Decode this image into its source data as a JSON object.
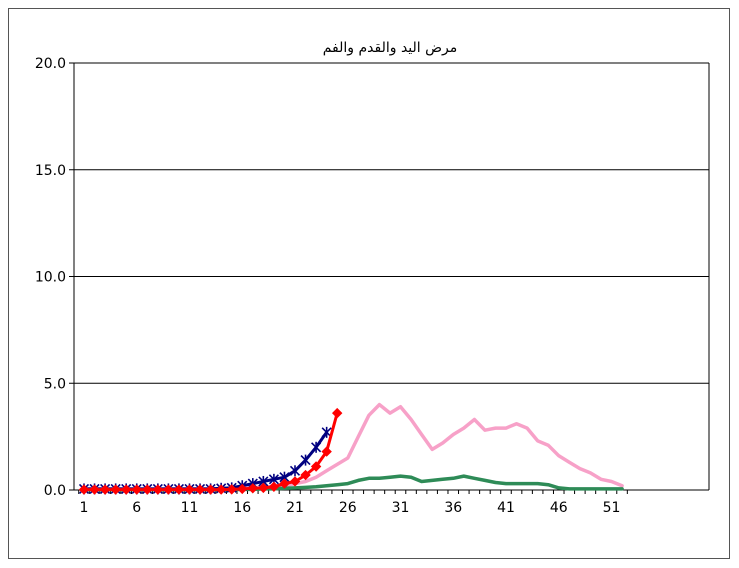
{
  "chart_data": {
    "type": "line",
    "title": "مرض اليد والقدم والفم",
    "xlabel": "",
    "ylabel": "",
    "ylim": [
      0,
      20
    ],
    "y_ticks": [
      "0.0",
      "5.0",
      "10.0",
      "15.0",
      "20.0"
    ],
    "x_ticks": [
      "1",
      "6",
      "11",
      "16",
      "21",
      "26",
      "31",
      "36",
      "41",
      "46",
      "51"
    ],
    "xlim": [
      1,
      53
    ],
    "grid": "horizontal",
    "legend": "none",
    "series": [
      {
        "color": "#f7a1c8",
        "marker": "none",
        "x": [
          1,
          2,
          3,
          4,
          5,
          6,
          7,
          8,
          9,
          10,
          11,
          12,
          13,
          14,
          15,
          16,
          17,
          18,
          19,
          20,
          21,
          22,
          23,
          24,
          25,
          26,
          27,
          28,
          29,
          30,
          31,
          32,
          33,
          34,
          35,
          36,
          37,
          38,
          39,
          40,
          41,
          42,
          43,
          44,
          45,
          46,
          47,
          48,
          49,
          50,
          51,
          52
        ],
        "values": [
          0.05,
          0.05,
          0.05,
          0.05,
          0.05,
          0.05,
          0.05,
          0.05,
          0.05,
          0.05,
          0.05,
          0.05,
          0.05,
          0.05,
          0.05,
          0.1,
          0.1,
          0.15,
          0.15,
          0.2,
          0.3,
          0.4,
          0.6,
          0.9,
          1.2,
          1.5,
          2.5,
          3.5,
          4.0,
          3.6,
          3.9,
          3.3,
          2.6,
          1.9,
          2.2,
          2.6,
          2.9,
          3.3,
          2.8,
          2.9,
          2.9,
          3.1,
          2.9,
          2.3,
          2.1,
          1.6,
          1.3,
          1.0,
          0.8,
          0.5,
          0.4,
          0.2
        ]
      },
      {
        "color": "#2e8b57",
        "marker": "none",
        "x": [
          1,
          2,
          3,
          4,
          5,
          6,
          7,
          8,
          9,
          10,
          11,
          12,
          13,
          14,
          15,
          16,
          17,
          18,
          19,
          20,
          21,
          22,
          23,
          24,
          25,
          26,
          27,
          28,
          29,
          30,
          31,
          32,
          33,
          34,
          35,
          36,
          37,
          38,
          39,
          40,
          41,
          42,
          43,
          44,
          45,
          46,
          47,
          48,
          49,
          50,
          51,
          52
        ],
        "values": [
          0.02,
          0.02,
          0.02,
          0.02,
          0.02,
          0.02,
          0.02,
          0.02,
          0.02,
          0.02,
          0.02,
          0.02,
          0.02,
          0.02,
          0.02,
          0.03,
          0.03,
          0.05,
          0.05,
          0.08,
          0.1,
          0.12,
          0.15,
          0.2,
          0.25,
          0.3,
          0.45,
          0.55,
          0.55,
          0.6,
          0.65,
          0.6,
          0.4,
          0.45,
          0.5,
          0.55,
          0.65,
          0.55,
          0.45,
          0.35,
          0.3,
          0.3,
          0.3,
          0.3,
          0.25,
          0.1,
          0.05,
          0.05,
          0.05,
          0.05,
          0.05,
          0.05
        ]
      },
      {
        "color": "#000080",
        "marker": "star",
        "x": [
          1,
          2,
          3,
          4,
          5,
          6,
          7,
          8,
          9,
          10,
          11,
          12,
          13,
          14,
          15,
          16,
          17,
          18,
          19,
          20,
          21,
          22,
          23,
          24
        ],
        "values": [
          0.05,
          0.05,
          0.05,
          0.05,
          0.05,
          0.05,
          0.05,
          0.05,
          0.05,
          0.05,
          0.05,
          0.05,
          0.05,
          0.08,
          0.1,
          0.2,
          0.3,
          0.4,
          0.5,
          0.6,
          0.9,
          1.4,
          2.0,
          2.7
        ]
      },
      {
        "color": "#ff0000",
        "marker": "diamond",
        "x": [
          1,
          2,
          3,
          4,
          5,
          6,
          7,
          8,
          9,
          10,
          11,
          12,
          13,
          14,
          15,
          16,
          17,
          18,
          19,
          20,
          21,
          22,
          23,
          24,
          25
        ],
        "values": [
          0.02,
          0.02,
          0.02,
          0.02,
          0.02,
          0.02,
          0.02,
          0.02,
          0.02,
          0.02,
          0.02,
          0.02,
          0.02,
          0.02,
          0.03,
          0.05,
          0.08,
          0.1,
          0.15,
          0.3,
          0.4,
          0.7,
          1.1,
          1.8,
          3.6
        ]
      }
    ]
  }
}
